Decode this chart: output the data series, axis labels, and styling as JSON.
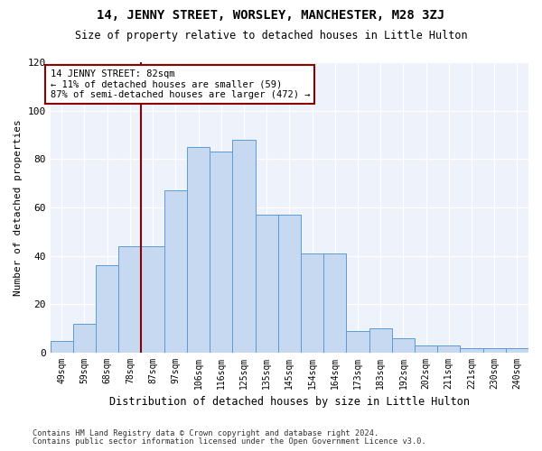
{
  "title1": "14, JENNY STREET, WORSLEY, MANCHESTER, M28 3ZJ",
  "title2": "Size of property relative to detached houses in Little Hulton",
  "xlabel": "Distribution of detached houses by size in Little Hulton",
  "ylabel": "Number of detached properties",
  "categories": [
    "49sqm",
    "59sqm",
    "68sqm",
    "78sqm",
    "87sqm",
    "97sqm",
    "106sqm",
    "116sqm",
    "125sqm",
    "135sqm",
    "145sqm",
    "154sqm",
    "164sqm",
    "173sqm",
    "183sqm",
    "192sqm",
    "202sqm",
    "211sqm",
    "221sqm",
    "230sqm",
    "240sqm"
  ],
  "values": [
    5,
    12,
    36,
    44,
    44,
    67,
    85,
    83,
    88,
    57,
    57,
    41,
    41,
    9,
    10,
    6,
    3,
    3,
    2,
    2,
    2
  ],
  "bar_color": "#c6d9f1",
  "bar_edge_color": "#5b9bd5",
  "vline_x": 3.5,
  "annotation_line1": "14 JENNY STREET: 82sqm",
  "annotation_line2": "← 11% of detached houses are smaller (59)",
  "annotation_line3": "87% of semi-detached houses are larger (472) →",
  "ylim": [
    0,
    120
  ],
  "yticks": [
    0,
    20,
    40,
    60,
    80,
    100,
    120
  ],
  "footnote1": "Contains HM Land Registry data © Crown copyright and database right 2024.",
  "footnote2": "Contains public sector information licensed under the Open Government Licence v3.0.",
  "bg_color": "#eef2fb"
}
